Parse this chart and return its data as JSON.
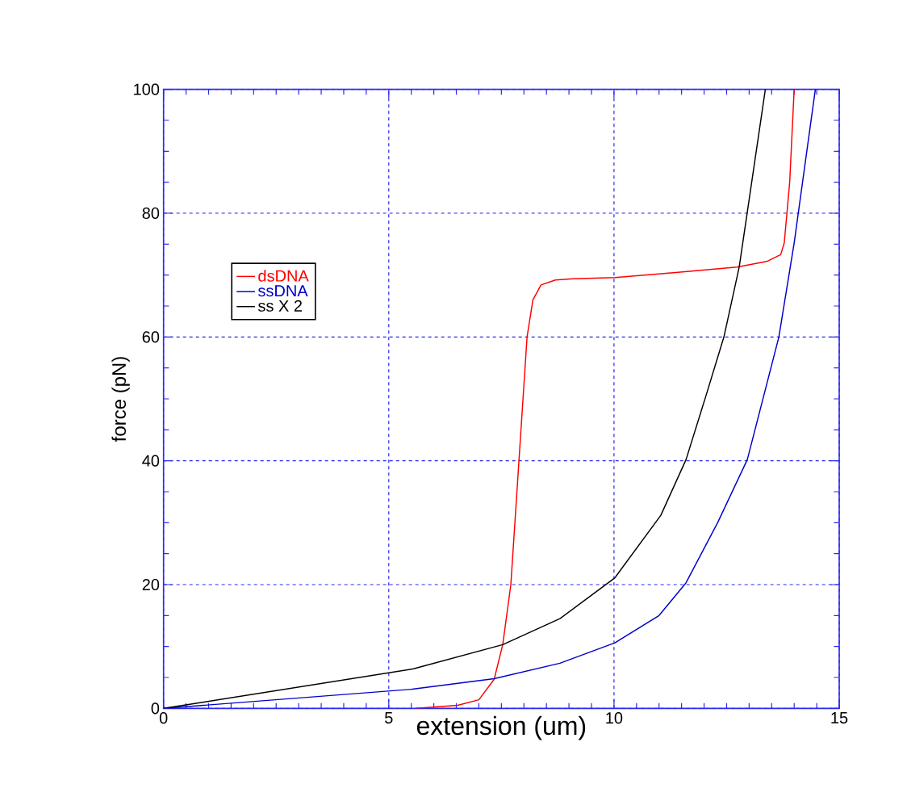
{
  "chart_data": {
    "type": "line",
    "xlabel": "extension (um)",
    "ylabel": "force (pN)",
    "xlim": [
      0,
      15
    ],
    "ylim": [
      0,
      100
    ],
    "xticks": [
      0,
      5,
      10,
      15
    ],
    "yticks": [
      0,
      20,
      40,
      60,
      80,
      100
    ],
    "grid": true,
    "legend": "top left",
    "marker": "none",
    "line_style": "solid",
    "series": [
      {
        "name": "dsDNA",
        "color": "#ff0000",
        "x": [
          5.6,
          6.53,
          7.0,
          7.34,
          7.53,
          7.71,
          7.89,
          8.07,
          8.2,
          8.38,
          8.7,
          9.09,
          10.02,
          11.37,
          12.73,
          13.39,
          13.7,
          13.78,
          13.9,
          14.0
        ],
        "values": [
          0,
          0.5,
          1.4,
          4.7,
          10.3,
          20,
          40,
          60,
          66,
          68.4,
          69.2,
          69.4,
          69.6,
          70.4,
          71.3,
          72.2,
          73.3,
          75.2,
          85,
          100
        ]
      },
      {
        "name": "ssDNA",
        "color": "#0000cc",
        "x": [
          0,
          5.52,
          7.34,
          8.8,
          10.02,
          11.0,
          11.6,
          12.3,
          12.96,
          13.66,
          14.0,
          14.47
        ],
        "values": [
          0,
          3.1,
          4.8,
          7.3,
          10.6,
          15,
          20.3,
          30,
          40.2,
          60,
          75.2,
          100
        ]
      },
      {
        "name": "ss X 2",
        "color": "#000000",
        "x": [
          0,
          5.55,
          7.53,
          8.8,
          10.02,
          11.04,
          11.6,
          12.05,
          12.44,
          12.78,
          13.36
        ],
        "values": [
          0,
          6.4,
          10.3,
          14.5,
          21.1,
          31.2,
          40.2,
          50.7,
          60,
          71.3,
          100
        ]
      }
    ]
  }
}
